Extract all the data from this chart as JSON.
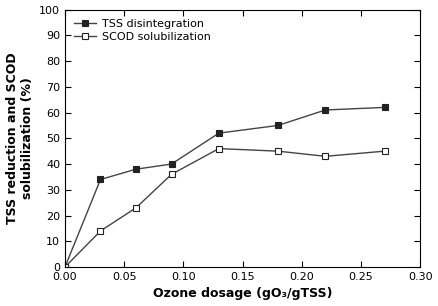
{
  "tss_x": [
    0.0,
    0.03,
    0.06,
    0.09,
    0.13,
    0.18,
    0.22,
    0.27
  ],
  "tss_y": [
    0,
    34,
    38,
    40,
    52,
    55,
    61,
    62
  ],
  "scod_x": [
    0.0,
    0.03,
    0.06,
    0.09,
    0.13,
    0.18,
    0.22,
    0.27
  ],
  "scod_y": [
    0,
    14,
    23,
    36,
    46,
    45,
    43,
    45
  ],
  "xlabel": "Ozone dosage (gO₃/gTSS)",
  "ylabel": "TSS reduction and SCOD\nsolubilization (%)",
  "xlim": [
    0.0,
    0.3
  ],
  "ylim": [
    0,
    100
  ],
  "xticks": [
    0.0,
    0.05,
    0.1,
    0.15,
    0.2,
    0.25,
    0.3
  ],
  "yticks": [
    0,
    10,
    20,
    30,
    40,
    50,
    60,
    70,
    80,
    90,
    100
  ],
  "tss_label": "TSS disintegration",
  "scod_label": "SCOD solubilization",
  "line_color": "#444444",
  "marker_fill": "#222222",
  "marker_edge": "#222222",
  "figsize": [
    4.38,
    3.06
  ],
  "dpi": 100
}
